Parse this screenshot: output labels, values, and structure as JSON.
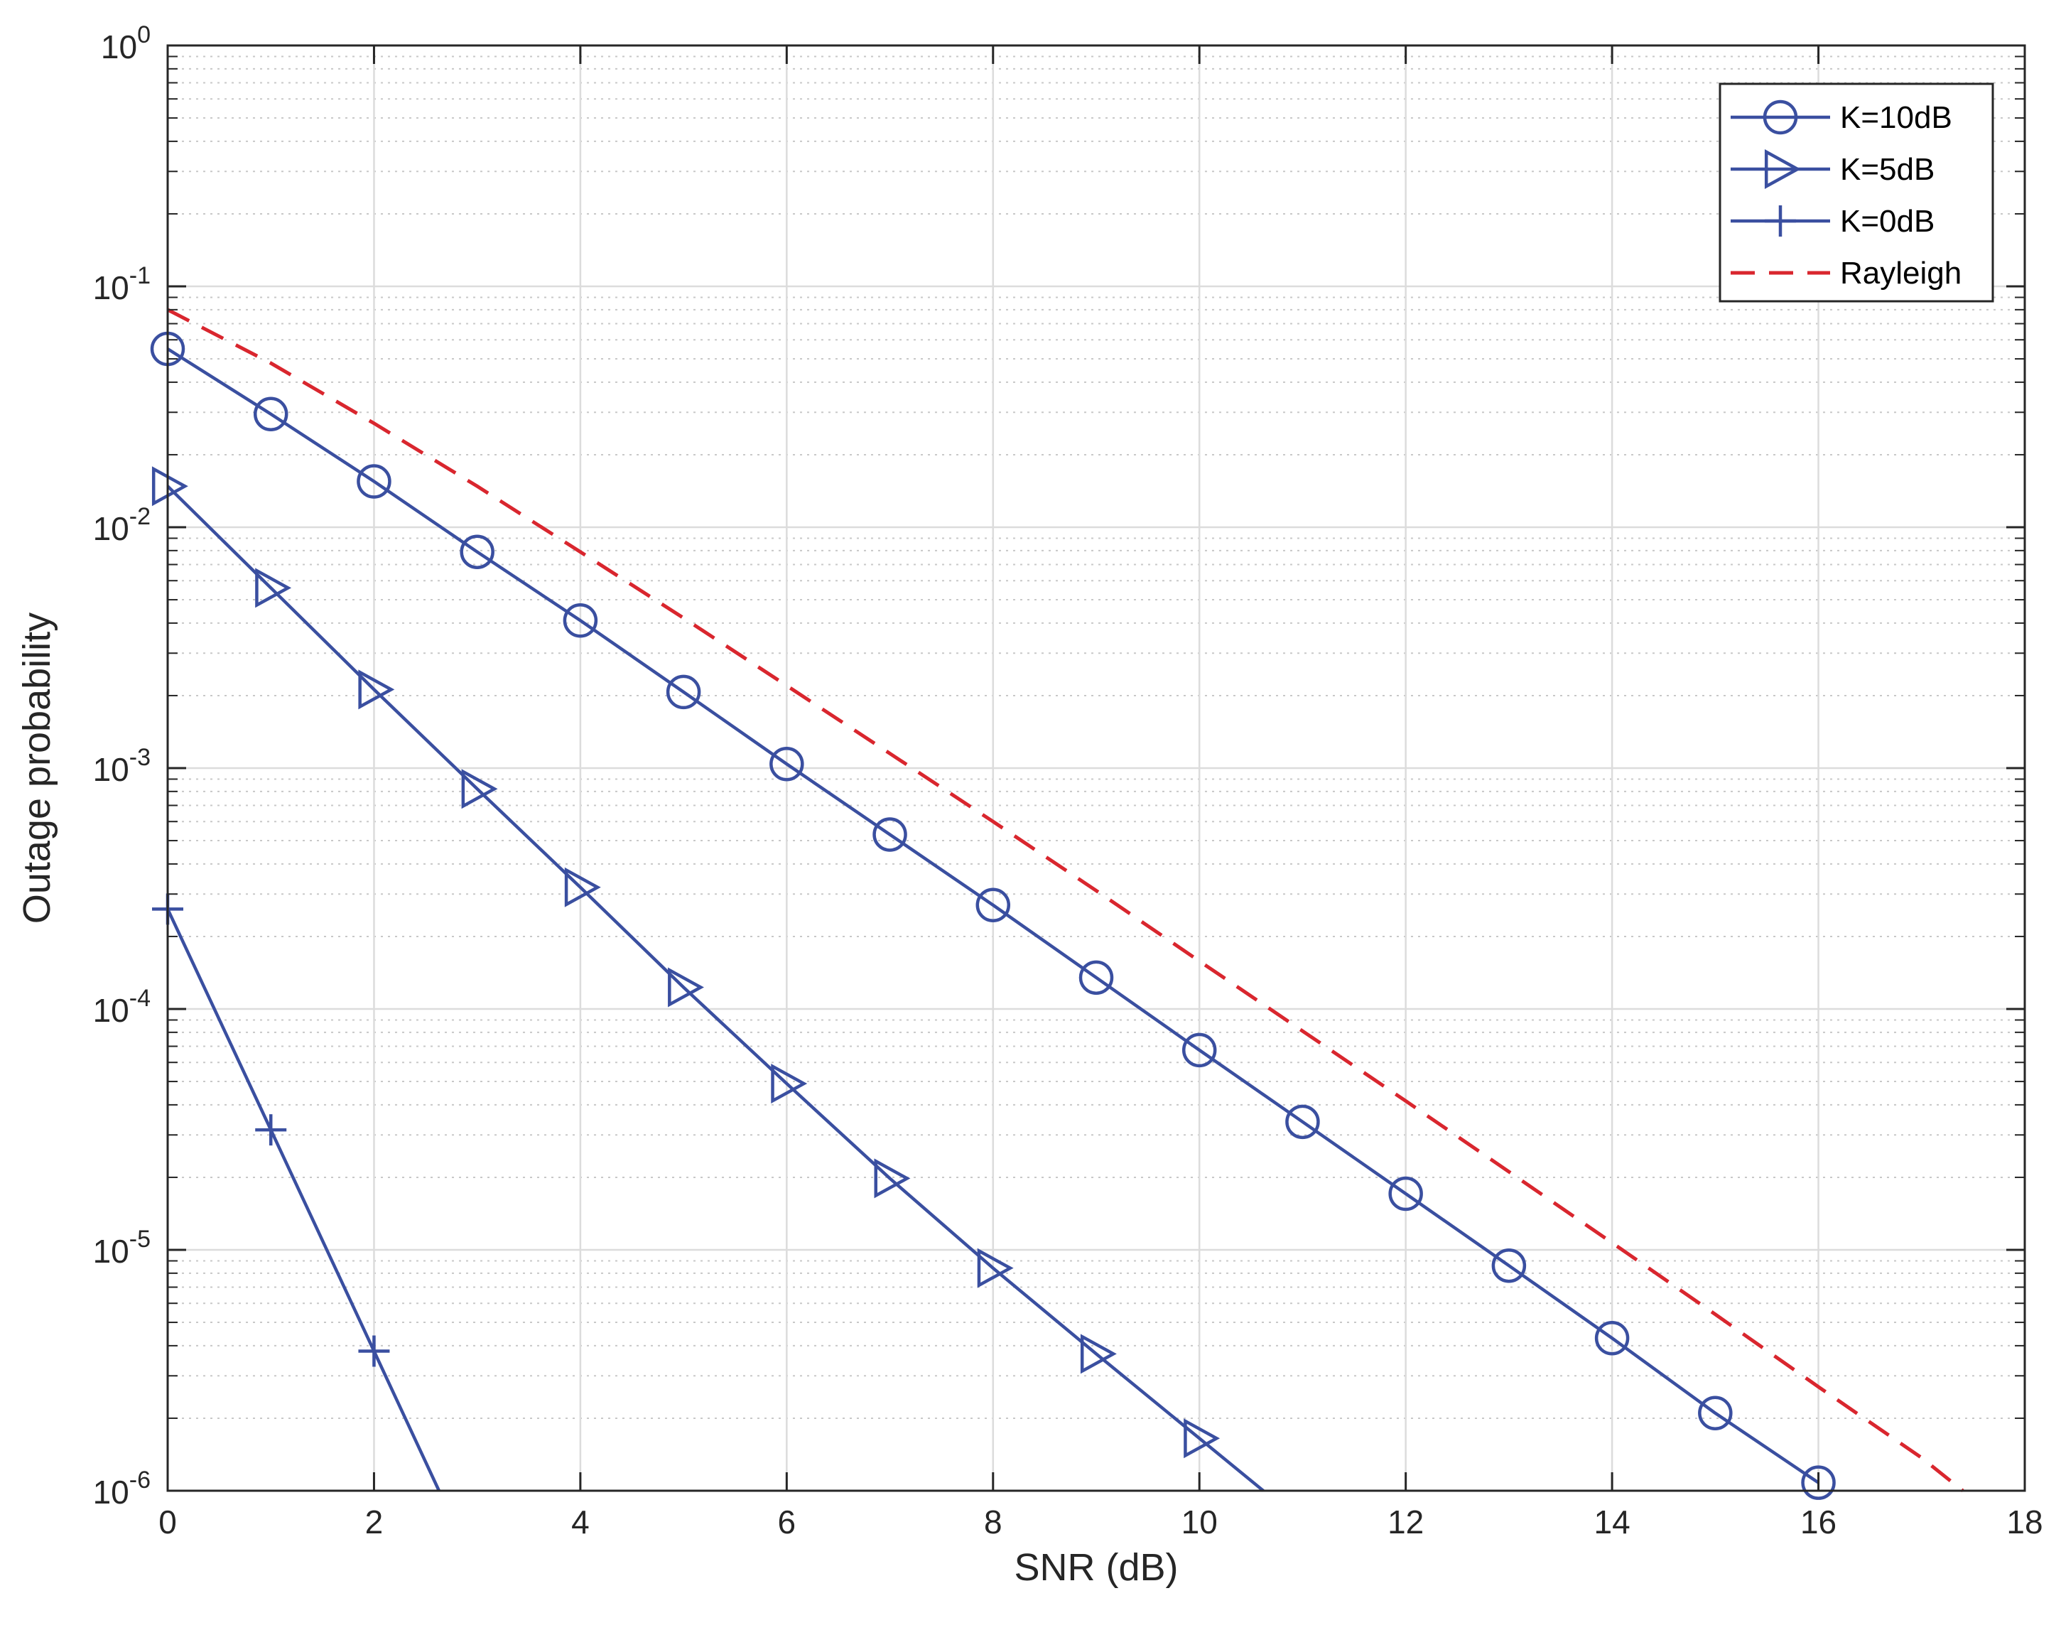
{
  "chart_data": {
    "type": "line",
    "xlabel": "SNR (dB)",
    "ylabel": "Outage probability",
    "xlim": [
      0,
      18
    ],
    "ylim": [
      1e-06,
      1
    ],
    "yscale": "log",
    "grid": true,
    "minor_grid": true,
    "legend_position": "top-right",
    "x_ticks": [
      0,
      2,
      4,
      6,
      8,
      10,
      12,
      14,
      16,
      18
    ],
    "x_tick_labels": [
      "0",
      "2",
      "4",
      "6",
      "8",
      "10",
      "12",
      "14",
      "16",
      "18"
    ],
    "y_ticks": [
      {
        "value": 1,
        "base": "10",
        "exp": "0"
      },
      {
        "value": 0.1,
        "base": "10",
        "exp": "-1"
      },
      {
        "value": 0.01,
        "base": "10",
        "exp": "-2"
      },
      {
        "value": 0.001,
        "base": "10",
        "exp": "-3"
      },
      {
        "value": 0.0001,
        "base": "10",
        "exp": "-4"
      },
      {
        "value": 1e-05,
        "base": "10",
        "exp": "-5"
      },
      {
        "value": 1e-06,
        "base": "10",
        "exp": "-6"
      }
    ],
    "series": [
      {
        "name": "K=10dB",
        "color": "#3a4fa0",
        "marker": "circle",
        "line": "solid",
        "x": [
          0,
          1,
          2,
          3,
          4,
          5,
          6,
          7,
          8,
          9,
          10,
          11,
          12,
          13,
          14,
          15,
          16
        ],
        "y": [
          0.055,
          0.0295,
          0.0155,
          0.0079,
          0.0041,
          0.00207,
          0.00104,
          0.00053,
          0.00027,
          0.000135,
          6.75e-05,
          3.4e-05,
          1.71e-05,
          8.6e-06,
          4.3e-06,
          2.1e-06,
          1.08e-06
        ]
      },
      {
        "name": "K=5dB",
        "color": "#3a4fa0",
        "marker": "triangle-right",
        "line": "solid",
        "x": [
          0,
          1,
          2,
          3,
          4,
          5,
          6,
          7,
          8,
          9,
          10,
          10.62
        ],
        "y": [
          0.0148,
          0.0056,
          0.00212,
          0.00082,
          0.00032,
          0.000123,
          4.9e-05,
          1.98e-05,
          8.4e-06,
          3.7e-06,
          1.65e-06,
          1e-06
        ],
        "marker_count": 11
      },
      {
        "name": "K=0dB",
        "color": "#3a4fa0",
        "marker": "plus",
        "line": "solid",
        "x": [
          0,
          1,
          2,
          2.63
        ],
        "y": [
          0.00026,
          3.15e-05,
          3.8e-06,
          1e-06
        ],
        "marker_count": 3
      },
      {
        "name": "Rayleigh",
        "color": "#d9262e",
        "marker": "none",
        "line": "dashed",
        "x": [
          0,
          1,
          2,
          3,
          4,
          5,
          6,
          7,
          8,
          9,
          10,
          11,
          12,
          13,
          14,
          15,
          16,
          17,
          17.4
        ],
        "y": [
          0.08,
          0.048,
          0.027,
          0.0148,
          0.0079,
          0.0042,
          0.0022,
          0.00115,
          0.0006,
          0.00031,
          0.000158,
          8.1e-05,
          4.15e-05,
          2.11e-05,
          1.07e-05,
          5.4e-06,
          2.7e-06,
          1.37e-06,
          1e-06
        ]
      }
    ]
  }
}
